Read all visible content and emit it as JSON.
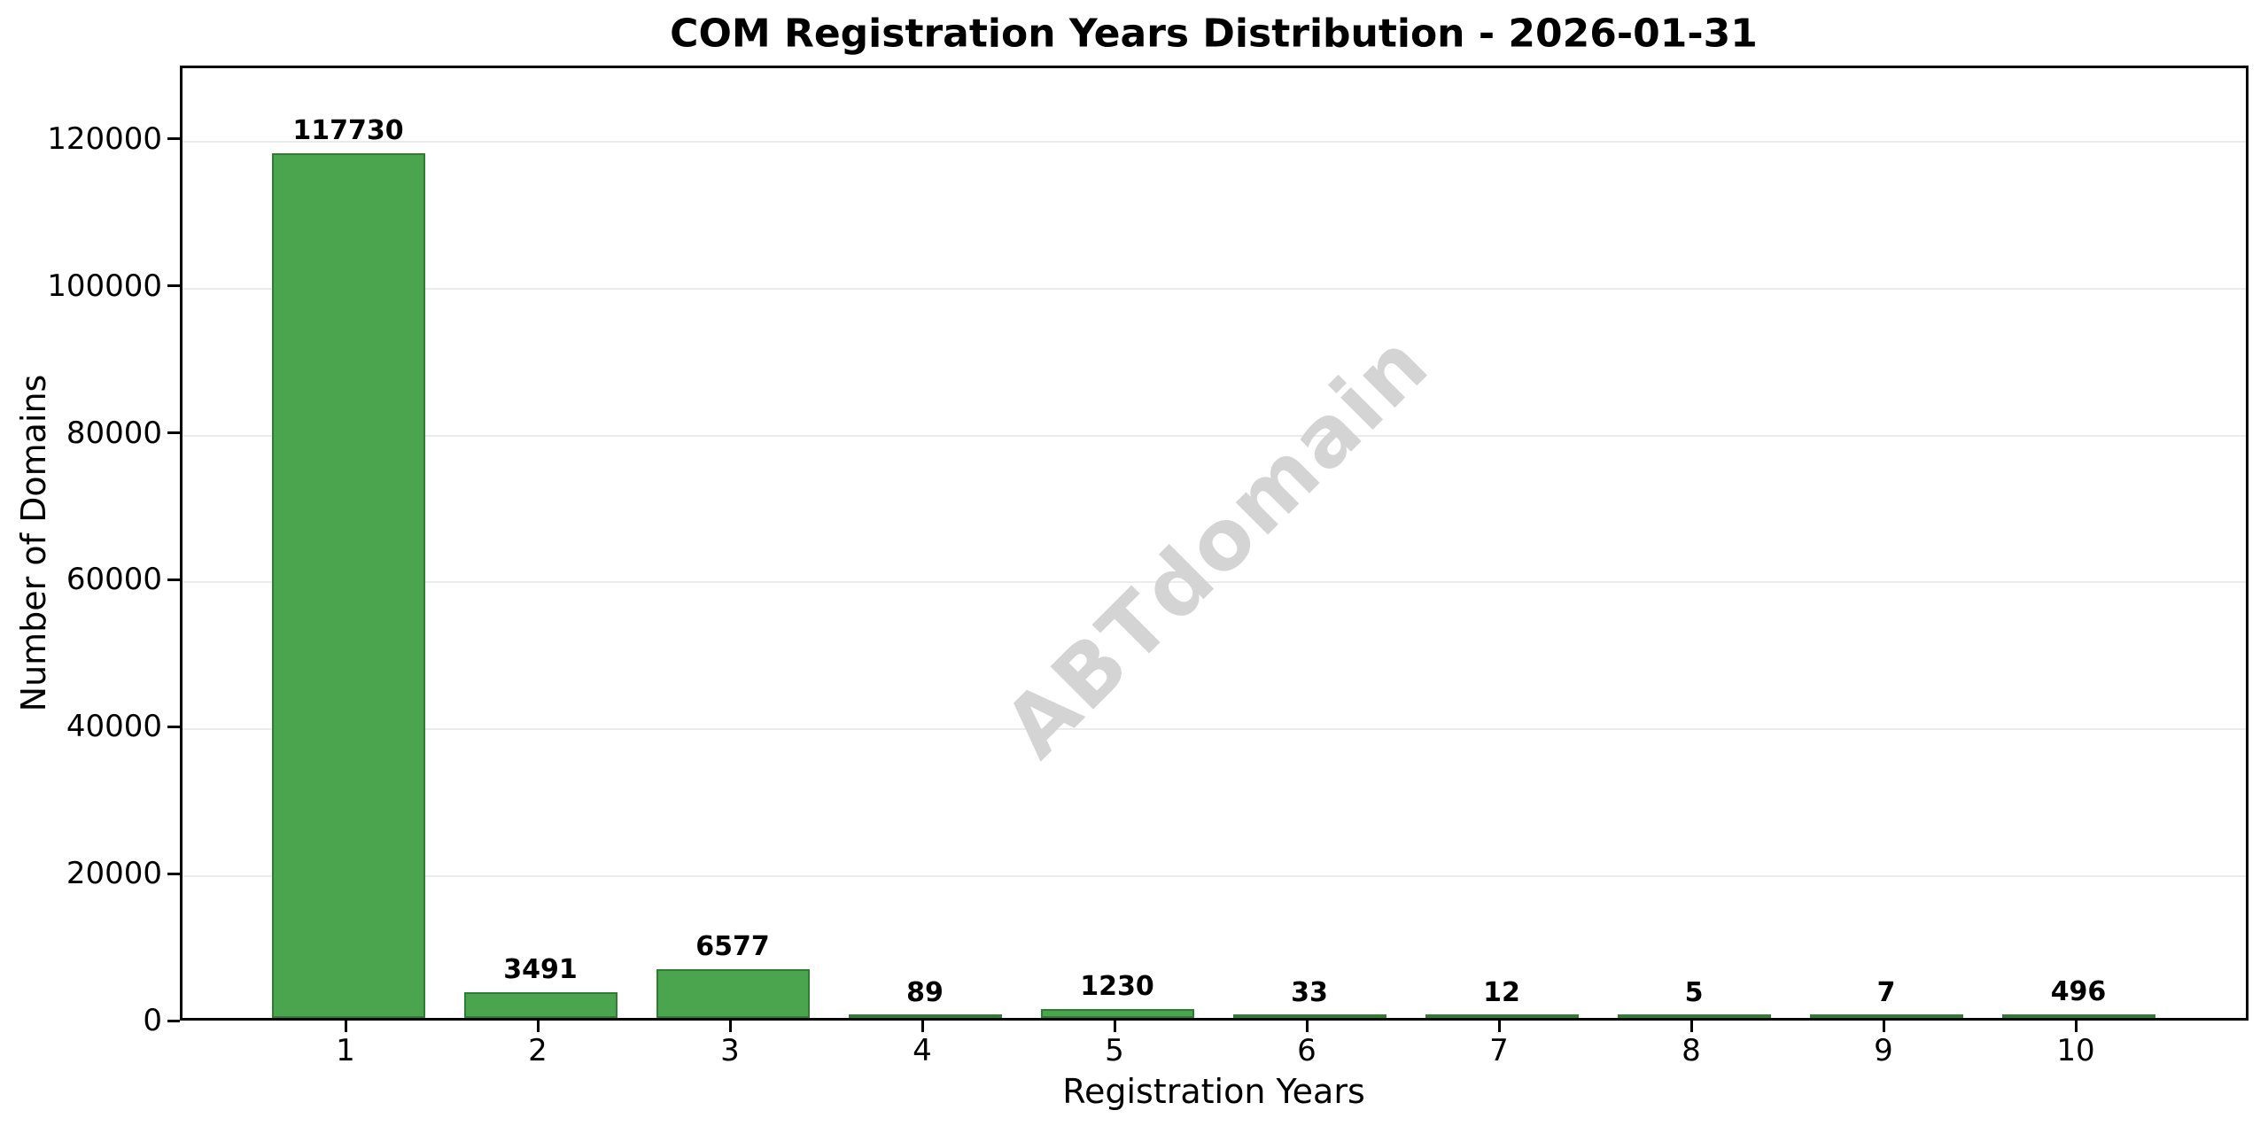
{
  "title": "COM Registration Years Distribution - 2026-01-31",
  "chart_data": {
    "type": "bar",
    "title": "COM Registration Years Distribution - 2026-01-31",
    "xlabel": "Registration Years",
    "ylabel": "Number of Domains",
    "categories": [
      "1",
      "2",
      "3",
      "4",
      "5",
      "6",
      "7",
      "8",
      "9",
      "10"
    ],
    "values": [
      117730,
      3491,
      6577,
      89,
      1230,
      33,
      12,
      5,
      7,
      496
    ],
    "value_labels": [
      "117730",
      "3491",
      "6577",
      "89",
      "1230",
      "33",
      "12",
      "5",
      "7",
      "496"
    ],
    "yticks": [
      0,
      20000,
      40000,
      60000,
      80000,
      100000,
      120000
    ],
    "ytick_labels": [
      "0",
      "20000",
      "40000",
      "60000",
      "80000",
      "100000",
      "120000"
    ],
    "ylim": [
      0,
      130000
    ],
    "grid": "horizontal-light",
    "legend": "none",
    "watermark": "ABTdomain",
    "colors": {
      "bar_fill": "#4BA54E",
      "bar_edge": "#2F7D33",
      "grid": "#EBEBEB",
      "watermark": "#D4D4D4",
      "axis": "#000000",
      "text": "#000000",
      "background": "#FFFFFF"
    }
  }
}
